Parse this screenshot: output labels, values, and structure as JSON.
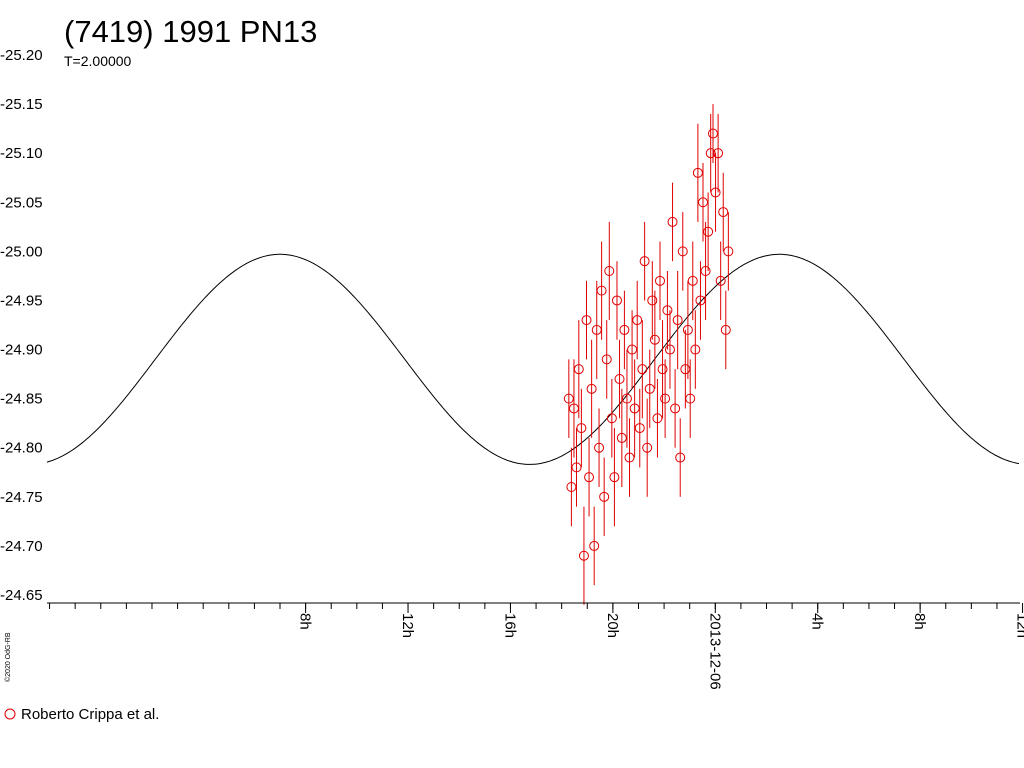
{
  "colors": {
    "data": "#e00000",
    "model": "#000000",
    "axis": "#000000"
  },
  "copyright": "©2020 OdG-RB",
  "legend": [
    {
      "marker": "circle-icon",
      "label": "Roberto Crippa et al.",
      "color": "#e00000"
    }
  ],
  "chart_data": {
    "type": "scatter",
    "title": "(7419) 1991 PN13",
    "subtitle": "T=2.00000",
    "y_axis": {
      "inverted": true,
      "range": [
        -25.2,
        -24.65
      ],
      "ticks": [
        -25.2,
        -25.15,
        -25.1,
        -25.05,
        -25.0,
        -24.95,
        -24.9,
        -24.85,
        -24.8,
        -24.75,
        -24.7,
        -24.65
      ],
      "tick_labels": [
        "-25.20",
        "-25.15",
        "-25.10",
        "-25.05",
        "-25.00",
        "-24.95",
        "-24.90",
        "-24.85",
        "-24.80",
        "-24.75",
        "-24.70",
        "-24.65"
      ]
    },
    "x_axis": {
      "unit": "hours relative to 2013-12-06 00h",
      "range": [
        -26.1,
        11.9
      ],
      "major_ticks": [
        -16,
        -12,
        -8,
        -4,
        0,
        4,
        8,
        12
      ],
      "tick_labels": [
        "8h",
        "12h",
        "16h",
        "20h",
        "2013-12-06",
        "4h",
        "8h",
        "12h"
      ]
    },
    "grid": false,
    "legend_position": "bottom-left",
    "model_curve": {
      "period_hours": 19.5,
      "mean_mag": -24.89,
      "amplitude": 0.107,
      "peak_time_hours": 2.5
    },
    "series": [
      {
        "name": "Roberto Crippa et al.",
        "x": [
          -5.72,
          -5.62,
          -5.52,
          -5.42,
          -5.33,
          -5.23,
          -5.13,
          -5.03,
          -4.93,
          -4.83,
          -4.73,
          -4.63,
          -4.54,
          -4.44,
          -4.34,
          -4.24,
          -4.14,
          -4.04,
          -3.94,
          -3.84,
          -3.74,
          -3.65,
          -3.55,
          -3.45,
          -3.35,
          -3.25,
          -3.15,
          -3.05,
          -2.95,
          -2.85,
          -2.76,
          -2.66,
          -2.56,
          -2.46,
          -2.36,
          -2.26,
          -2.16,
          -2.06,
          -1.96,
          -1.87,
          -1.77,
          -1.67,
          -1.57,
          -1.47,
          -1.37,
          -1.27,
          -1.17,
          -1.07,
          -0.98,
          -0.88,
          -0.78,
          -0.68,
          -0.58,
          -0.48,
          -0.38,
          -0.28,
          -0.18,
          -0.09,
          0.01,
          0.11,
          0.21,
          0.31,
          0.41,
          0.51
        ],
        "y": [
          -24.85,
          -24.76,
          -24.84,
          -24.78,
          -24.88,
          -24.82,
          -24.69,
          -24.93,
          -24.77,
          -24.86,
          -24.7,
          -24.92,
          -24.8,
          -24.96,
          -24.75,
          -24.89,
          -24.98,
          -24.83,
          -24.77,
          -24.95,
          -24.87,
          -24.81,
          -24.92,
          -24.85,
          -24.79,
          -24.9,
          -24.84,
          -24.93,
          -24.82,
          -24.88,
          -24.99,
          -24.8,
          -24.86,
          -24.95,
          -24.91,
          -24.83,
          -24.97,
          -24.88,
          -24.85,
          -24.94,
          -24.9,
          -25.03,
          -24.84,
          -24.93,
          -24.79,
          -25.0,
          -24.88,
          -24.92,
          -24.85,
          -24.97,
          -24.9,
          -25.08,
          -24.95,
          -25.05,
          -24.98,
          -25.02,
          -25.1,
          -25.12,
          -25.06,
          -25.1,
          -24.97,
          -25.04,
          -24.92,
          -25.0
        ],
        "y_error": [
          0.04,
          0.04,
          0.05,
          0.04,
          0.05,
          0.04,
          0.05,
          0.04,
          0.04,
          0.05,
          0.04,
          0.05,
          0.04,
          0.05,
          0.04,
          0.04,
          0.05,
          0.04,
          0.05,
          0.04,
          0.04,
          0.05,
          0.04,
          0.05,
          0.04,
          0.04,
          0.05,
          0.04,
          0.04,
          0.05,
          0.04,
          0.05,
          0.04,
          0.04,
          0.05,
          0.04,
          0.04,
          0.05,
          0.04,
          0.04,
          0.04,
          0.04,
          0.04,
          0.05,
          0.04,
          0.04,
          0.04,
          0.05,
          0.04,
          0.04,
          0.04,
          0.05,
          0.04,
          0.04,
          0.05,
          0.04,
          0.04,
          0.03,
          0.04,
          0.04,
          0.04,
          0.04,
          0.04,
          0.04
        ]
      }
    ]
  }
}
